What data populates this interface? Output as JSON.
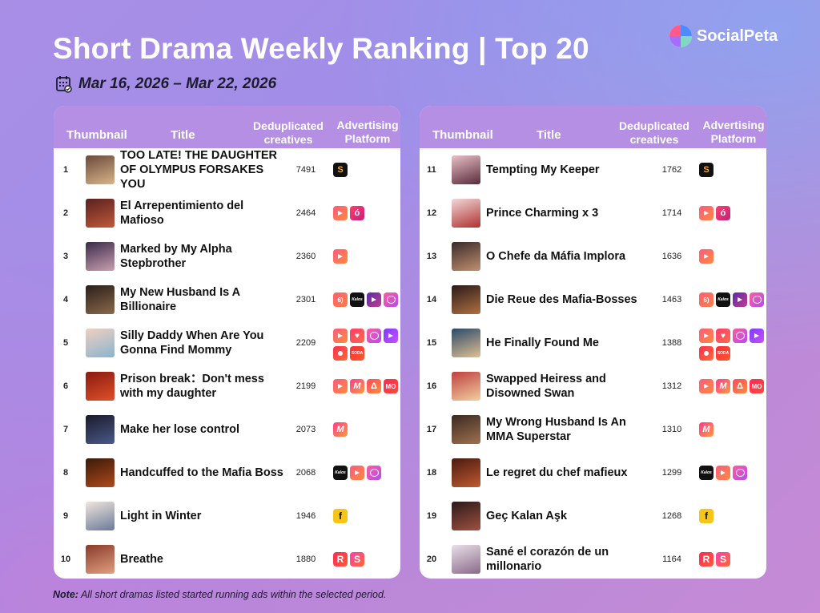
{
  "header": {
    "title": "Short Drama Weekly Ranking | Top 20",
    "date_range": "Mar 16, 2026 – Mar 22, 2026",
    "brand": "SocialPeta",
    "brand_logo_colors": [
      "#ff5a8a",
      "#4f8bff",
      "#7fd7c4",
      "#a66cff"
    ]
  },
  "table": {
    "columns": {
      "thumbnail": "Thumbnail",
      "title": "Title",
      "dedup_line1": "Deduplicated",
      "dedup_line2": "creatives",
      "platform_line1": "Advertising",
      "platform_line2": "Platform"
    },
    "left": [
      {
        "rank": "1",
        "title": "TOO LATE! THE DAUGHTER OF OLYMPUS FORSAKES YOU",
        "count": "7491",
        "platforms": [
          "short-icon"
        ],
        "thumb": [
          "#6a4a3a",
          "#d9b48a"
        ]
      },
      {
        "rank": "2",
        "title": "El Arrepentimiento del Mafioso",
        "count": "2464",
        "platforms": [
          "reelshort-icon",
          "dramabox-icon"
        ],
        "thumb": [
          "#5a2020",
          "#c05a3a"
        ]
      },
      {
        "rank": "3",
        "title": "Marked by My Alpha Stepbrother",
        "count": "2360",
        "platforms": [
          "reelshort-icon"
        ],
        "thumb": [
          "#3a2a4a",
          "#c9a0b0"
        ]
      },
      {
        "rank": "4",
        "title": "My New Husband Is A Billionaire",
        "count": "2301",
        "platforms": [
          "dramatv-icon",
          "kalos-icon",
          "flextv-icon",
          "chat-icon"
        ],
        "thumb": [
          "#2a1e1a",
          "#8a6a4a"
        ]
      },
      {
        "rank": "5",
        "title": "Silly Daddy When Are You Gonna Find Mommy",
        "count": "2209",
        "platforms": [
          "reelshort-icon",
          "heart-icon",
          "chat-icon",
          "tv-icon",
          "red-icon",
          "soda-icon"
        ],
        "thumb": [
          "#f0d0c0",
          "#8ab4d0"
        ]
      },
      {
        "rank": "6",
        "title": "Prison break：Don't mess with my daughter",
        "count": "2199",
        "platforms": [
          "reelshort-icon",
          "mm-icon",
          "triangle-icon",
          "mo-icon"
        ],
        "thumb": [
          "#8a1a10",
          "#e0502a"
        ]
      },
      {
        "rank": "7",
        "title": "Make her lose control",
        "count": "2073",
        "platforms": [
          "mm-icon"
        ],
        "thumb": [
          "#1a1a2a",
          "#4a5a8a"
        ]
      },
      {
        "rank": "8",
        "title": "Handcuffed to the Mafia Boss",
        "count": "2068",
        "platforms": [
          "kalos-icon",
          "reelshort-icon",
          "chat-icon"
        ],
        "thumb": [
          "#3a1a0a",
          "#b04a1a"
        ]
      },
      {
        "rank": "9",
        "title": "Light in Winter",
        "count": "1946",
        "platforms": [
          "flick-icon"
        ],
        "thumb": [
          "#f0e6dc",
          "#6a7a9a"
        ]
      },
      {
        "rank": "10",
        "title": "Breathe",
        "count": "1880",
        "platforms": [
          "r-icon",
          "s-icon"
        ],
        "thumb": [
          "#8a3a2a",
          "#e0a080"
        ]
      }
    ],
    "right": [
      {
        "rank": "11",
        "title": "Tempting My Keeper",
        "count": "1762",
        "platforms": [
          "short-icon"
        ],
        "thumb": [
          "#e8c0c8",
          "#5a2a3a"
        ]
      },
      {
        "rank": "12",
        "title": "Prince Charming x 3",
        "count": "1714",
        "platforms": [
          "reelshort-icon",
          "dramabox-icon"
        ],
        "thumb": [
          "#f0d8d8",
          "#b03030"
        ]
      },
      {
        "rank": "13",
        "title": "O Chefe da Máfia Implora",
        "count": "1636",
        "platforms": [
          "reelshort-icon"
        ],
        "thumb": [
          "#3a2a2a",
          "#c09070"
        ]
      },
      {
        "rank": "14",
        "title": "Die Reue des Mafia-Bosses",
        "count": "1463",
        "platforms": [
          "dramatv-icon",
          "kalos-icon",
          "flextv-icon",
          "chat-icon"
        ],
        "thumb": [
          "#2a1a1a",
          "#b07040"
        ]
      },
      {
        "rank": "15",
        "title": "He Finally Found Me",
        "count": "1388",
        "platforms": [
          "reelshort-icon",
          "heart-icon",
          "chat-icon",
          "tv-icon",
          "red-icon",
          "soda-icon"
        ],
        "thumb": [
          "#2a4a6a",
          "#e0c090"
        ]
      },
      {
        "rank": "16",
        "title": "Swapped Heiress and Disowned Swan",
        "count": "1312",
        "platforms": [
          "reelshort-icon",
          "mm-icon",
          "triangle-icon",
          "mo-icon"
        ],
        "thumb": [
          "#c04040",
          "#f0d0a0"
        ]
      },
      {
        "rank": "17",
        "title": "My Wrong Husband Is An MMA Superstar",
        "count": "1310",
        "platforms": [
          "mm-icon"
        ],
        "thumb": [
          "#3a2a20",
          "#a07050"
        ]
      },
      {
        "rank": "18",
        "title": "Le regret du chef mafieux",
        "count": "1299",
        "platforms": [
          "kalos-icon",
          "reelshort-icon",
          "chat-icon"
        ],
        "thumb": [
          "#4a1a10",
          "#c05a30"
        ]
      },
      {
        "rank": "19",
        "title": "Geç Kalan Aşk",
        "count": "1268",
        "platforms": [
          "flick-icon"
        ],
        "thumb": [
          "#2a1a1a",
          "#a05040"
        ]
      },
      {
        "rank": "20",
        "title": "Sané el corazón de un millonario",
        "count": "1164",
        "platforms": [
          "r-icon",
          "s-icon"
        ],
        "thumb": [
          "#e8e0e8",
          "#8a6a8a"
        ]
      }
    ]
  },
  "note": {
    "label": "Note:",
    "text": " All short dramas listed started running ads within the selected period."
  }
}
